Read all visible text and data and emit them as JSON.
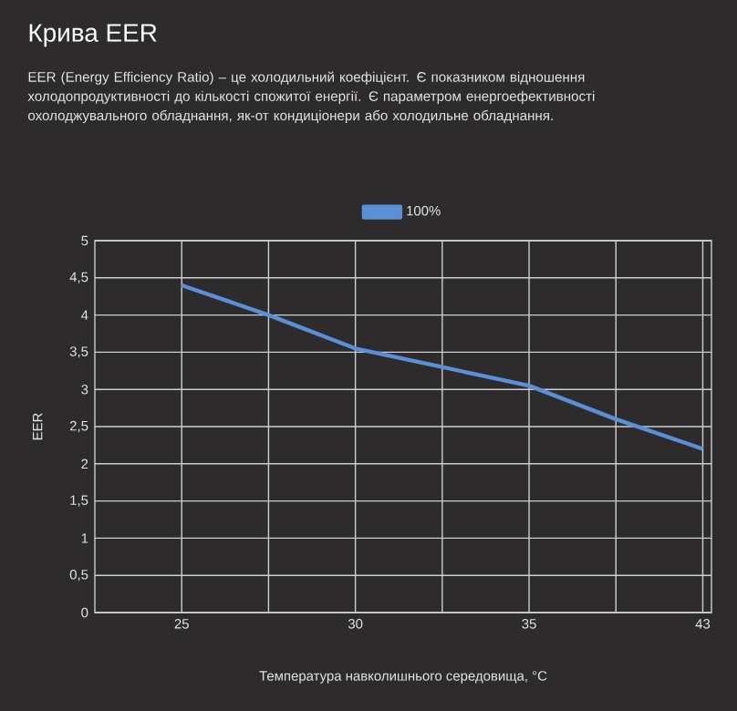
{
  "chart_data": {
    "type": "line",
    "title": "Крива EER",
    "subtitle": "EER (Energy Efficiency Ratio) – це холодильний коефіцієнт. Є показником відношення холодопродуктивності до кількості спожитої енергії. Є параметром енергоефективності охолоджувального обладнання, як-от кондиціонери або холодильне обладнання.",
    "xlabel": "Температура навколишнього середовища, °C",
    "ylabel": "EER",
    "categories": [
      "25",
      null,
      "30",
      null,
      "35",
      null,
      "43"
    ],
    "series": [
      {
        "name": "100%",
        "color": "#5b8fd6",
        "values": [
          4.4,
          4.0,
          3.55,
          3.3,
          3.05,
          2.6,
          2.2
        ]
      }
    ],
    "ylim": [
      0,
      5
    ],
    "yticks": [
      0,
      {
        "value": 0.5,
        "label": "0,5"
      },
      1,
      {
        "value": 1.5,
        "label": "1,5"
      },
      2,
      {
        "value": 2.5,
        "label": "2,5"
      },
      3,
      {
        "value": 3.5,
        "label": "3,5"
      },
      4,
      {
        "value": 4.5,
        "label": "4,5"
      },
      5
    ],
    "grid": true,
    "legend": "top",
    "marker": "none",
    "line_style": "solid"
  }
}
